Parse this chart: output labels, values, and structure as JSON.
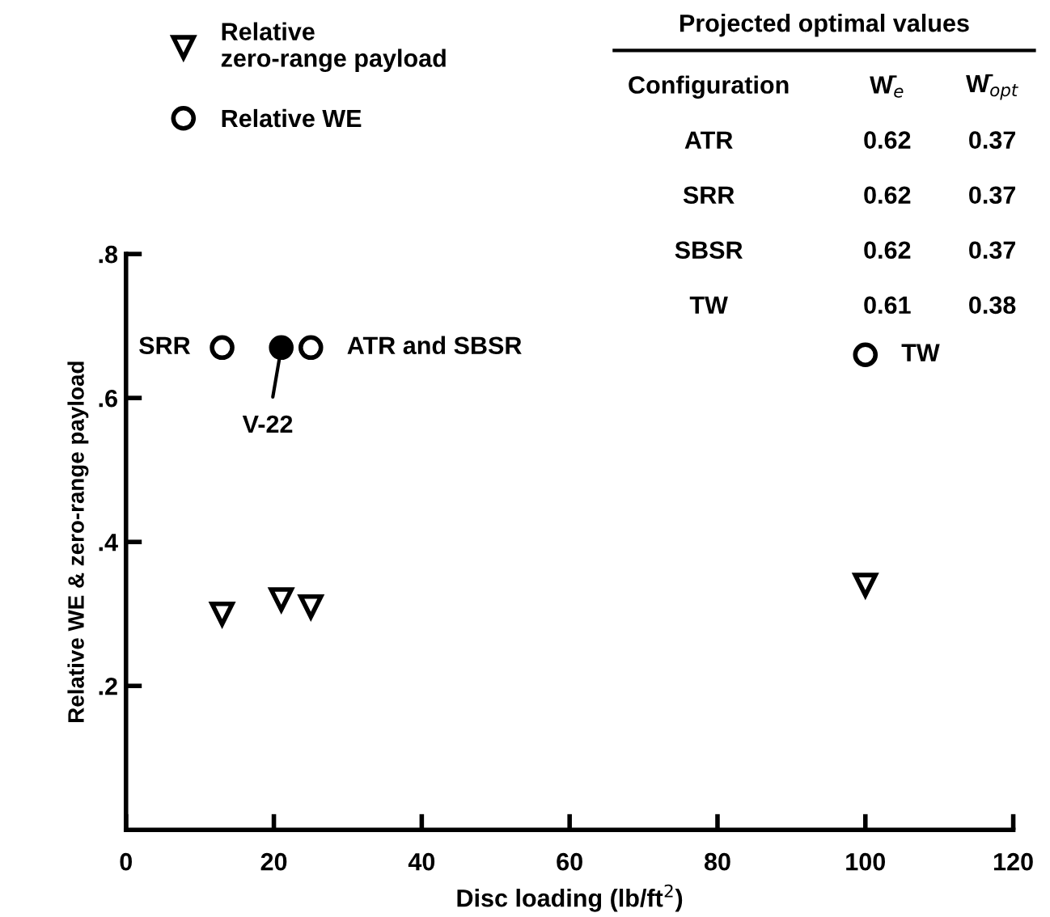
{
  "chart_data": {
    "type": "scatter",
    "xlabel": "Disc loading (lb/ft$^{2}$)",
    "ylabel": "Relative WE & zero-range payload",
    "xlim": [
      0,
      120
    ],
    "xticks": [
      0,
      20,
      40,
      60,
      80,
      100,
      120
    ],
    "ylim": [
      0,
      0.8
    ],
    "yticks": [
      {
        "value": 0.2,
        "label": ".2"
      },
      {
        "value": 0.4,
        "label": ".4"
      },
      {
        "value": 0.6,
        "label": ".6"
      },
      {
        "value": 0.8,
        "label": ".8"
      }
    ],
    "grid": false,
    "legend": "top left",
    "series": [
      {
        "name": "Relative\nzero-range payload",
        "color": "#000000",
        "marker": "triangle",
        "x": [
          13,
          21,
          25,
          100
        ],
        "values": [
          0.3,
          0.32,
          0.31,
          0.34
        ]
      },
      {
        "name": "Relative WE",
        "color": "#000000",
        "marker": "circle",
        "x": [
          13,
          25,
          100
        ],
        "values": [
          0.67,
          0.67,
          0.66
        ]
      },
      {
        "color": "#000000",
        "marker": "circle",
        "x": [
          21
        ],
        "values": [
          0.67
        ]
      }
    ],
    "annotations": [
      {
        "text": "SRR",
        "x": 13,
        "y": 0.67
      },
      {
        "text": "ATR and SBSR",
        "x": 25,
        "y": 0.67
      },
      {
        "text": "V-22",
        "x": 21,
        "y": 0.67
      },
      {
        "text": "TW",
        "x": 100,
        "y": 0.66
      },
      "Projected optimal values",
      "Configuration",
      "W̄$_{e}$",
      "W̄$_{opt}$",
      "ATR",
      "0.62",
      "0.37",
      "SRR",
      "0.62",
      "0.37",
      "SBSR",
      "0.62",
      "0.37",
      "TW",
      "0.61",
      "0.38"
    ]
  }
}
